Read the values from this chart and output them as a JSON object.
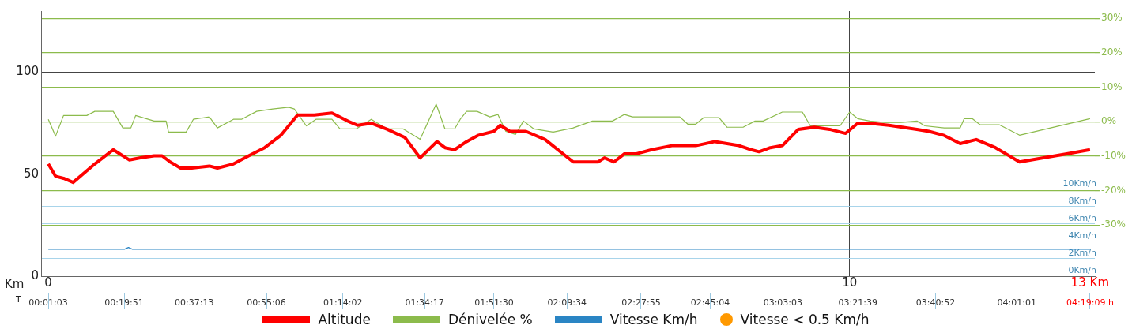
{
  "chart_data": {
    "type": "line",
    "xlabel": "Km",
    "x2label": "T",
    "xlim": [
      -0.09,
      13.06
    ],
    "xticks": [
      0,
      10,
      {
        "value": 13,
        "label": "13 Km"
      }
    ],
    "x2lim": [
      -0.012,
      4.339
    ],
    "x2ticks": [
      {
        "value": 0.0175,
        "label": "00:01:03"
      },
      {
        "value": 0.3308,
        "label": "00:19:51"
      },
      {
        "value": 0.6203,
        "label": "00:37:13"
      },
      {
        "value": 0.9183,
        "label": "00:55:06"
      },
      {
        "value": 1.2339,
        "label": "01:14:02"
      },
      {
        "value": 1.5714,
        "label": "01:34:17"
      },
      {
        "value": 1.8583,
        "label": "01:51:30"
      },
      {
        "value": 2.1594,
        "label": "02:09:34"
      },
      {
        "value": 2.4653,
        "label": "02:27:55"
      },
      {
        "value": 2.7511,
        "label": "02:45:04"
      },
      {
        "value": 3.0508,
        "label": "03:03:03"
      },
      {
        "value": 3.3608,
        "label": "03:21:39"
      },
      {
        "value": 3.6811,
        "label": "03:40:52"
      },
      {
        "value": 4.0169,
        "label": "04:01:01"
      },
      {
        "value": 4.3192,
        "label": "04:19:09 h"
      }
    ],
    "ylim": [
      0,
      130
    ],
    "yticks": [
      0,
      50,
      100
    ],
    "y2lim": [
      -44.8,
      32.1
    ],
    "y2ticks": [
      {
        "value": -30,
        "label": "-30%"
      },
      {
        "value": -20,
        "label": "-20%"
      },
      {
        "value": -10,
        "label": "-10%"
      },
      {
        "value": 0,
        "label": "0%"
      },
      {
        "value": 10,
        "label": "10%"
      },
      {
        "value": 20,
        "label": "20%"
      },
      {
        "value": 30,
        "label": "30%"
      }
    ],
    "y3lim": [
      0,
      30.5
    ],
    "y3ticks": [
      {
        "value": 0,
        "label": "0Km/h"
      },
      {
        "value": 2,
        "label": "2Km/h"
      },
      {
        "value": 4,
        "label": "4Km/h"
      },
      {
        "value": 6,
        "label": "6Km/h"
      },
      {
        "value": 8,
        "label": "8Km/h"
      },
      {
        "value": 10,
        "label": "10Km/h"
      }
    ],
    "grid": true,
    "legend": "bottom",
    "marker": "none",
    "line_style": "solid",
    "series": [
      {
        "name": "Altitude",
        "color": "#ff0000",
        "x": [
          0,
          0.09,
          0.19,
          0.31,
          0.43,
          0.58,
          0.81,
          1.01,
          1.15,
          1.32,
          1.42,
          1.52,
          1.65,
          1.79,
          2.01,
          2.11,
          2.31,
          2.5,
          2.7,
          2.9,
          3.11,
          3.22,
          3.32,
          3.54,
          3.74,
          3.86,
          4.03,
          4.23,
          4.45,
          4.64,
          4.85,
          4.95,
          5.07,
          5.22,
          5.36,
          5.56,
          5.64,
          5.76,
          5.83,
          5.96,
          6.2,
          6.55,
          6.86,
          6.94,
          7.06,
          7.19,
          7.34,
          7.53,
          7.78,
          7.93,
          8.08,
          8.32,
          8.47,
          8.62,
          8.77,
          8.87,
          9.01,
          9.16,
          9.36,
          9.56,
          9.75,
          9.95,
          10.1,
          10.25,
          10.49,
          10.84,
          10.99,
          11.18,
          11.38,
          11.58,
          11.82,
          12.12,
          12.42,
          12.71,
          13
        ],
        "values": [
          55,
          49,
          48,
          46,
          50,
          55,
          62,
          57,
          58,
          59,
          59,
          56,
          53,
          53,
          54,
          53,
          55,
          59,
          63,
          69,
          79,
          79,
          79,
          80,
          76,
          74,
          75,
          72,
          68,
          58,
          66,
          63,
          62,
          66,
          69,
          71,
          74,
          71,
          71,
          71,
          67,
          56,
          56,
          58,
          56,
          60,
          60,
          62,
          64,
          64,
          64,
          66,
          65,
          64,
          62,
          61,
          63,
          64,
          72,
          73,
          72,
          70,
          75,
          75,
          74,
          72,
          71,
          69,
          65,
          67,
          63,
          56,
          58,
          60,
          62
        ]
      },
      {
        "name": "Dénivelée %",
        "color": "#8cbb4c",
        "axis": "y2",
        "x": [
          0,
          0.09,
          0.19,
          0.48,
          0.58,
          0.81,
          0.93,
          1.03,
          1.09,
          1.32,
          1.47,
          1.5,
          1.72,
          1.81,
          2.01,
          2.11,
          2.31,
          2.41,
          2.6,
          2.8,
          3,
          3.07,
          3.22,
          3.34,
          3.54,
          3.64,
          3.84,
          4.03,
          4.23,
          4.43,
          4.64,
          4.84,
          4.95,
          5.07,
          5.14,
          5.22,
          5.35,
          5.51,
          5.61,
          5.71,
          5.83,
          5.93,
          6.06,
          6.3,
          6.55,
          6.79,
          7.04,
          7.19,
          7.29,
          7.58,
          7.88,
          7.98,
          8.08,
          8.18,
          8.37,
          8.47,
          8.67,
          8.82,
          8.92,
          9.16,
          9.41,
          9.51,
          9.88,
          10,
          10.1,
          10.25,
          10.44,
          10.64,
          10.84,
          10.94,
          11.18,
          11.38,
          11.43,
          11.53,
          11.63,
          11.87,
          12.12,
          13
        ],
        "values": [
          0.7,
          -4.2,
          1.8,
          1.8,
          3,
          3,
          -1.8,
          -1.8,
          1.8,
          0.2,
          0.2,
          -3,
          -3,
          0.7,
          1.4,
          -1.8,
          0.7,
          0.7,
          3,
          3.7,
          4.2,
          3.7,
          -1.2,
          0.7,
          0.7,
          -2.1,
          -2.1,
          0.7,
          -2.1,
          -2.1,
          -5.1,
          5.1,
          -2.1,
          -2.1,
          0.7,
          3,
          3,
          1.4,
          2.1,
          -2.8,
          -3.7,
          0.2,
          -2.1,
          -3,
          -1.8,
          0.2,
          0.2,
          2.1,
          1.4,
          1.4,
          1.4,
          -0.7,
          -0.7,
          1.2,
          1.2,
          -1.6,
          -1.6,
          0.2,
          0.2,
          2.8,
          2.8,
          -1.2,
          -1.2,
          2.8,
          0.9,
          0.2,
          -0.2,
          -0.2,
          0.2,
          -1.2,
          -1.8,
          -1.8,
          0.9,
          0.9,
          -0.9,
          -0.9,
          -3.9,
          0.9
        ]
      },
      {
        "name": "Vitesse Km/h",
        "color": "#2a85c4",
        "axis": "y3",
        "x": [
          0,
          0.95,
          1.0,
          1.05,
          13
        ],
        "values": [
          3.1,
          3.1,
          3.3,
          3.1,
          3.1
        ]
      },
      {
        "name": "Vitesse < 0.5 Km/h",
        "color": "#ff9900",
        "type": "scatter",
        "marker": "circle"
      }
    ]
  }
}
